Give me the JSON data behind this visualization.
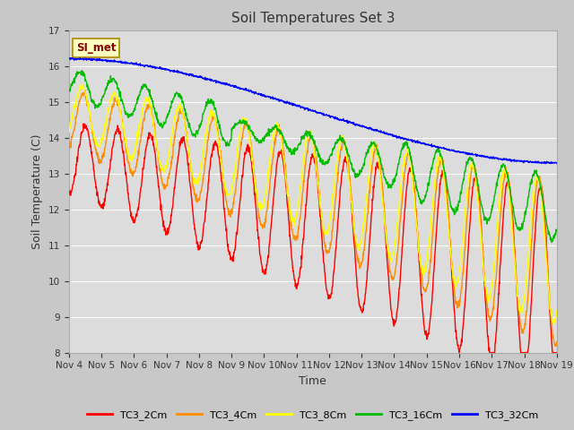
{
  "title": "Soil Temperatures Set 3",
  "xlabel": "Time",
  "ylabel": "Soil Temperature (C)",
  "ylim": [
    8.0,
    17.0
  ],
  "yticks": [
    8.0,
    9.0,
    10.0,
    11.0,
    12.0,
    13.0,
    14.0,
    15.0,
    16.0,
    17.0
  ],
  "x_labels": [
    "Nov 4",
    "Nov 5",
    "Nov 6",
    "Nov 7",
    "Nov 8",
    "Nov 9",
    "Nov 10",
    "Nov 11",
    "Nov 12",
    "Nov 13",
    "Nov 14",
    "Nov 15",
    "Nov 16",
    "Nov 17",
    "Nov 18",
    "Nov 19"
  ],
  "colors": {
    "TC3_2Cm": "#FF0000",
    "TC3_4Cm": "#FF8C00",
    "TC3_8Cm": "#FFFF00",
    "TC3_16Cm": "#00BB00",
    "TC3_32Cm": "#0000FF"
  },
  "legend_label": "SI_met",
  "fig_bg": "#C8C8C8",
  "plot_bg": "#DCDCDC",
  "grid_color": "#FFFFFF"
}
